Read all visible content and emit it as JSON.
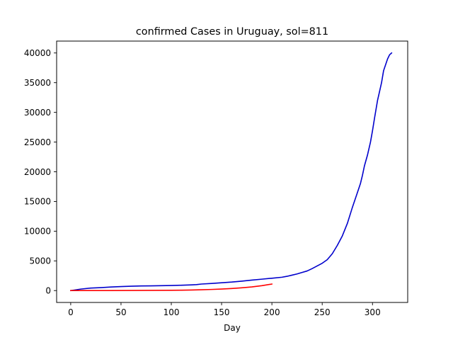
{
  "chart_data": {
    "type": "line",
    "title": "confirmed Cases in Uruguay, sol=811",
    "xlabel": "Day",
    "ylabel": "",
    "xlim": [
      -14,
      335
    ],
    "ylim": [
      -2000,
      42000
    ],
    "xticks": [
      0,
      50,
      100,
      150,
      200,
      250,
      300
    ],
    "yticks": [
      0,
      5000,
      10000,
      15000,
      20000,
      25000,
      30000,
      35000,
      40000
    ],
    "grid": false,
    "series": [
      {
        "color": "#0000cc",
        "x": [
          0,
          10,
          20,
          30,
          40,
          50,
          60,
          70,
          80,
          90,
          100,
          110,
          120,
          125,
          130,
          140,
          150,
          160,
          170,
          180,
          190,
          200,
          210,
          215,
          220,
          225,
          230,
          235,
          240,
          245,
          250,
          255,
          260,
          265,
          270,
          275,
          280,
          285,
          288,
          290,
          292,
          295,
          298,
          300,
          302,
          304,
          305,
          307,
          309,
          311,
          313,
          315,
          317,
          319
        ],
        "y": [
          0,
          250,
          420,
          500,
          600,
          680,
          730,
          780,
          800,
          820,
          850,
          900,
          960,
          1000,
          1100,
          1200,
          1320,
          1430,
          1580,
          1760,
          1920,
          2080,
          2250,
          2400,
          2600,
          2800,
          3050,
          3300,
          3700,
          4150,
          4600,
          5200,
          6200,
          7600,
          9200,
          11300,
          14000,
          16500,
          18000,
          19400,
          21000,
          22800,
          25000,
          26900,
          29000,
          31000,
          32000,
          33500,
          35000,
          37000,
          38000,
          39000,
          39700,
          40000
        ]
      },
      {
        "color": "#ff0000",
        "x": [
          0,
          20,
          40,
          60,
          80,
          100,
          110,
          120,
          130,
          140,
          150,
          160,
          170,
          180,
          190,
          200
        ],
        "y": [
          0,
          5,
          10,
          18,
          30,
          50,
          70,
          100,
          140,
          190,
          260,
          350,
          470,
          620,
          820,
          1100
        ]
      }
    ]
  }
}
